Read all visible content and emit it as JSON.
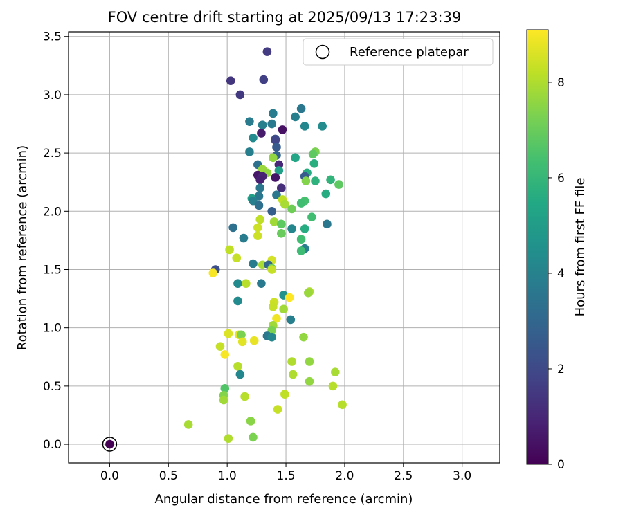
{
  "chart_data": {
    "type": "scatter",
    "title": "FOV centre drift starting at 2025/09/13 17:23:39",
    "xlabel": "Angular distance from reference (arcmin)",
    "ylabel": "Rotation from reference (arcmin)",
    "xlim": [
      -0.35,
      3.32
    ],
    "ylim": [
      -0.16,
      3.54
    ],
    "xticks": [
      "0.0",
      "0.5",
      "1.0",
      "1.5",
      "2.0",
      "2.5",
      "3.0"
    ],
    "yticks": [
      "0.0",
      "0.5",
      "1.0",
      "1.5",
      "2.0",
      "2.5",
      "3.0",
      "3.5"
    ],
    "grid": true,
    "legend": {
      "label": "Reference platepar",
      "placement": "top-right"
    },
    "colorbar": {
      "label": "Hours from first FF file",
      "ticks": [
        "0",
        "2",
        "4",
        "6",
        "8"
      ],
      "min": 0,
      "max": 9.1,
      "colormap": "viridis"
    },
    "reference_point": {
      "x": 0.0,
      "y": 0.0,
      "hours": 0.0
    },
    "points": [
      {
        "x": 1.34,
        "y": 3.37,
        "h": 1.6
      },
      {
        "x": 1.03,
        "y": 3.12,
        "h": 1.4
      },
      {
        "x": 1.11,
        "y": 3.0,
        "h": 1.5
      },
      {
        "x": 1.31,
        "y": 3.13,
        "h": 1.7
      },
      {
        "x": 1.63,
        "y": 2.88,
        "h": 3.6
      },
      {
        "x": 1.39,
        "y": 2.84,
        "h": 3.8
      },
      {
        "x": 1.58,
        "y": 2.81,
        "h": 3.9
      },
      {
        "x": 1.19,
        "y": 2.77,
        "h": 3.8
      },
      {
        "x": 1.3,
        "y": 2.74,
        "h": 3.9
      },
      {
        "x": 1.38,
        "y": 2.75,
        "h": 3.7
      },
      {
        "x": 1.66,
        "y": 2.73,
        "h": 4.2
      },
      {
        "x": 1.81,
        "y": 2.73,
        "h": 4.4
      },
      {
        "x": 1.29,
        "y": 2.67,
        "h": 0.7
      },
      {
        "x": 1.47,
        "y": 2.7,
        "h": 0.4
      },
      {
        "x": 1.22,
        "y": 2.63,
        "h": 4.3
      },
      {
        "x": 1.41,
        "y": 2.62,
        "h": 2.3
      },
      {
        "x": 1.41,
        "y": 2.61,
        "h": 1.9
      },
      {
        "x": 1.42,
        "y": 2.55,
        "h": 2.6
      },
      {
        "x": 1.19,
        "y": 2.51,
        "h": 3.9
      },
      {
        "x": 1.42,
        "y": 2.48,
        "h": 2.9
      },
      {
        "x": 1.58,
        "y": 2.46,
        "h": 5.4
      },
      {
        "x": 1.39,
        "y": 2.46,
        "h": 7.6
      },
      {
        "x": 1.75,
        "y": 2.51,
        "h": 7.3
      },
      {
        "x": 1.73,
        "y": 2.49,
        "h": 6.8
      },
      {
        "x": 1.26,
        "y": 2.4,
        "h": 3.4
      },
      {
        "x": 1.44,
        "y": 2.4,
        "h": 1.0
      },
      {
        "x": 1.3,
        "y": 2.36,
        "h": 7.7
      },
      {
        "x": 1.44,
        "y": 2.35,
        "h": 5.1
      },
      {
        "x": 1.34,
        "y": 2.33,
        "h": 7.6
      },
      {
        "x": 1.74,
        "y": 2.41,
        "h": 5.7
      },
      {
        "x": 1.26,
        "y": 2.31,
        "h": 0.6
      },
      {
        "x": 1.3,
        "y": 2.3,
        "h": 0.9
      },
      {
        "x": 1.41,
        "y": 2.29,
        "h": 0.5
      },
      {
        "x": 1.68,
        "y": 2.33,
        "h": 5.6
      },
      {
        "x": 1.66,
        "y": 2.3,
        "h": 2.6
      },
      {
        "x": 1.28,
        "y": 2.27,
        "h": 0.8
      },
      {
        "x": 1.67,
        "y": 2.26,
        "h": 7.4
      },
      {
        "x": 1.75,
        "y": 2.26,
        "h": 5.8
      },
      {
        "x": 1.88,
        "y": 2.27,
        "h": 5.9
      },
      {
        "x": 1.95,
        "y": 2.23,
        "h": 6.8
      },
      {
        "x": 1.28,
        "y": 2.2,
        "h": 3.6
      },
      {
        "x": 1.46,
        "y": 2.2,
        "h": 1.2
      },
      {
        "x": 1.42,
        "y": 2.14,
        "h": 3.6
      },
      {
        "x": 1.84,
        "y": 2.15,
        "h": 5.6
      },
      {
        "x": 1.27,
        "y": 2.13,
        "h": 3.6
      },
      {
        "x": 1.21,
        "y": 2.11,
        "h": 5.1
      },
      {
        "x": 1.22,
        "y": 2.09,
        "h": 3.9
      },
      {
        "x": 1.47,
        "y": 2.1,
        "h": 8.2
      },
      {
        "x": 1.66,
        "y": 2.09,
        "h": 6.4
      },
      {
        "x": 1.63,
        "y": 2.07,
        "h": 6.3
      },
      {
        "x": 1.27,
        "y": 2.05,
        "h": 3.3
      },
      {
        "x": 1.49,
        "y": 2.06,
        "h": 7.9
      },
      {
        "x": 1.55,
        "y": 2.02,
        "h": 7.1
      },
      {
        "x": 1.38,
        "y": 2.0,
        "h": 2.7
      },
      {
        "x": 1.28,
        "y": 1.93,
        "h": 8.2
      },
      {
        "x": 1.4,
        "y": 1.91,
        "h": 7.8
      },
      {
        "x": 1.46,
        "y": 1.89,
        "h": 6.8
      },
      {
        "x": 1.72,
        "y": 1.95,
        "h": 6.3
      },
      {
        "x": 1.85,
        "y": 1.89,
        "h": 3.6
      },
      {
        "x": 1.05,
        "y": 1.86,
        "h": 3.4
      },
      {
        "x": 1.26,
        "y": 1.86,
        "h": 8.4
      },
      {
        "x": 1.55,
        "y": 1.85,
        "h": 4.2
      },
      {
        "x": 1.66,
        "y": 1.85,
        "h": 5.6
      },
      {
        "x": 1.46,
        "y": 1.81,
        "h": 7.0
      },
      {
        "x": 1.26,
        "y": 1.79,
        "h": 8.4
      },
      {
        "x": 1.14,
        "y": 1.77,
        "h": 3.8
      },
      {
        "x": 1.63,
        "y": 1.76,
        "h": 6.3
      },
      {
        "x": 1.02,
        "y": 1.67,
        "h": 8.2
      },
      {
        "x": 1.66,
        "y": 1.68,
        "h": 3.9
      },
      {
        "x": 1.63,
        "y": 1.66,
        "h": 6.2
      },
      {
        "x": 1.08,
        "y": 1.6,
        "h": 8.3
      },
      {
        "x": 1.22,
        "y": 1.55,
        "h": 3.8
      },
      {
        "x": 1.3,
        "y": 1.54,
        "h": 7.9
      },
      {
        "x": 1.38,
        "y": 1.58,
        "h": 8.5
      },
      {
        "x": 1.35,
        "y": 1.54,
        "h": 3.0
      },
      {
        "x": 1.38,
        "y": 1.51,
        "h": 7.0
      },
      {
        "x": 1.38,
        "y": 1.5,
        "h": 8.3
      },
      {
        "x": 0.9,
        "y": 1.5,
        "h": 2.2
      },
      {
        "x": 0.88,
        "y": 1.47,
        "h": 9.0
      },
      {
        "x": 1.09,
        "y": 1.38,
        "h": 4.3
      },
      {
        "x": 1.16,
        "y": 1.38,
        "h": 8.1
      },
      {
        "x": 1.29,
        "y": 1.38,
        "h": 3.7
      },
      {
        "x": 1.7,
        "y": 1.31,
        "h": 8.0
      },
      {
        "x": 1.69,
        "y": 1.3,
        "h": 7.7
      },
      {
        "x": 1.48,
        "y": 1.28,
        "h": 4.6
      },
      {
        "x": 1.53,
        "y": 1.26,
        "h": 9.1
      },
      {
        "x": 1.09,
        "y": 1.23,
        "h": 4.3
      },
      {
        "x": 1.4,
        "y": 1.22,
        "h": 8.4
      },
      {
        "x": 1.39,
        "y": 1.18,
        "h": 8.3
      },
      {
        "x": 1.48,
        "y": 1.16,
        "h": 7.8
      },
      {
        "x": 1.42,
        "y": 1.08,
        "h": 8.9
      },
      {
        "x": 1.54,
        "y": 1.07,
        "h": 3.9
      },
      {
        "x": 1.39,
        "y": 1.02,
        "h": 7.8
      },
      {
        "x": 1.38,
        "y": 0.98,
        "h": 7.3
      },
      {
        "x": 1.01,
        "y": 0.95,
        "h": 8.6
      },
      {
        "x": 1.1,
        "y": 0.94,
        "h": 8.7
      },
      {
        "x": 1.12,
        "y": 0.94,
        "h": 7.3
      },
      {
        "x": 1.34,
        "y": 0.93,
        "h": 3.6
      },
      {
        "x": 1.38,
        "y": 0.92,
        "h": 4.2
      },
      {
        "x": 1.65,
        "y": 0.92,
        "h": 7.6
      },
      {
        "x": 1.13,
        "y": 0.88,
        "h": 8.7
      },
      {
        "x": 1.23,
        "y": 0.89,
        "h": 8.8
      },
      {
        "x": 0.94,
        "y": 0.84,
        "h": 8.3
      },
      {
        "x": 0.98,
        "y": 0.77,
        "h": 9.0
      },
      {
        "x": 1.09,
        "y": 0.67,
        "h": 8.1
      },
      {
        "x": 1.11,
        "y": 0.6,
        "h": 4.2
      },
      {
        "x": 1.55,
        "y": 0.71,
        "h": 8.0
      },
      {
        "x": 1.7,
        "y": 0.71,
        "h": 7.6
      },
      {
        "x": 1.56,
        "y": 0.6,
        "h": 8.0
      },
      {
        "x": 1.92,
        "y": 0.62,
        "h": 7.9
      },
      {
        "x": 0.98,
        "y": 0.48,
        "h": 6.6
      },
      {
        "x": 1.7,
        "y": 0.54,
        "h": 7.6
      },
      {
        "x": 1.9,
        "y": 0.5,
        "h": 8.1
      },
      {
        "x": 0.97,
        "y": 0.42,
        "h": 7.4
      },
      {
        "x": 0.97,
        "y": 0.38,
        "h": 7.8
      },
      {
        "x": 1.15,
        "y": 0.41,
        "h": 8.1
      },
      {
        "x": 1.49,
        "y": 0.43,
        "h": 8.2
      },
      {
        "x": 1.98,
        "y": 0.34,
        "h": 8.1
      },
      {
        "x": 1.43,
        "y": 0.3,
        "h": 8.3
      },
      {
        "x": 1.2,
        "y": 0.2,
        "h": 7.5
      },
      {
        "x": 0.67,
        "y": 0.17,
        "h": 7.9
      },
      {
        "x": 1.22,
        "y": 0.06,
        "h": 7.3
      },
      {
        "x": 1.01,
        "y": 0.05,
        "h": 8.0
      },
      {
        "x": 0.0,
        "y": 0.0,
        "h": 0.0
      }
    ]
  }
}
